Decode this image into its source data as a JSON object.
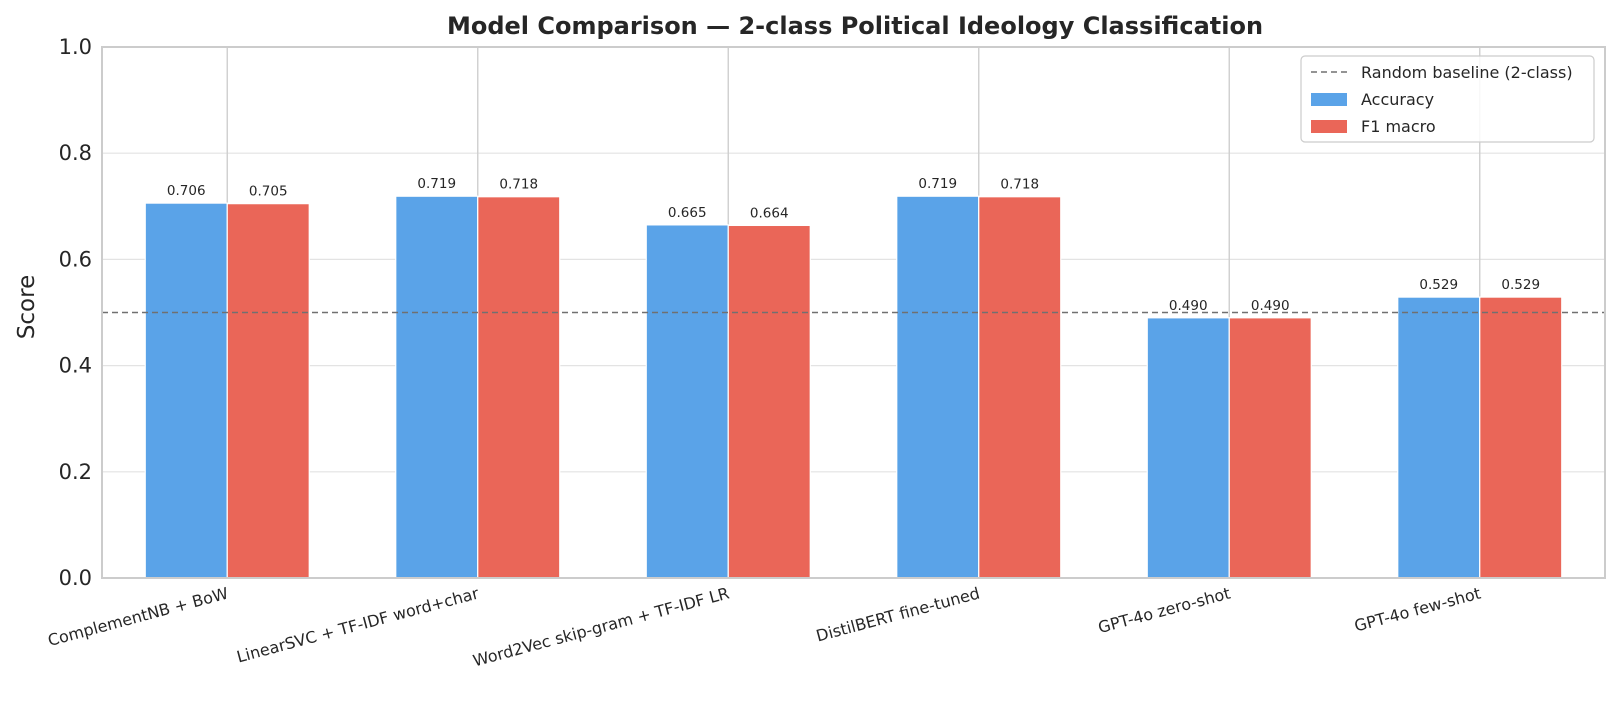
{
  "chart_data": {
    "type": "bar",
    "title": "Model Comparison — 2-class Political Ideology Classification",
    "xlabel": "",
    "ylabel": "Score",
    "ylim": [
      0,
      1.0
    ],
    "yticks": [
      "0.0",
      "0.2",
      "0.4",
      "0.6",
      "0.8",
      "1.0"
    ],
    "categories": [
      "ComplementNB + BoW",
      "LinearSVC + TF-IDF word+char",
      "Word2Vec skip-gram + TF-IDF LR",
      "DistilBERT fine-tuned",
      "GPT-4o zero-shot",
      "GPT-4o few-shot"
    ],
    "series": [
      {
        "name": "Accuracy",
        "color": "#5aa3e8",
        "values": [
          0.706,
          0.719,
          0.665,
          0.719,
          0.49,
          0.529
        ],
        "labels": [
          "0.706",
          "0.719",
          "0.665",
          "0.719",
          "0.490",
          "0.529"
        ]
      },
      {
        "name": "F1 macro",
        "color": "#ea6658",
        "values": [
          0.705,
          0.718,
          0.664,
          0.718,
          0.49,
          0.529
        ],
        "labels": [
          "0.705",
          "0.718",
          "0.664",
          "0.718",
          "0.490",
          "0.529"
        ]
      }
    ],
    "baseline": {
      "name": "Random baseline (2-class)",
      "value": 0.5,
      "color": "#707070"
    },
    "grid": true,
    "legend_position": "top-right"
  }
}
